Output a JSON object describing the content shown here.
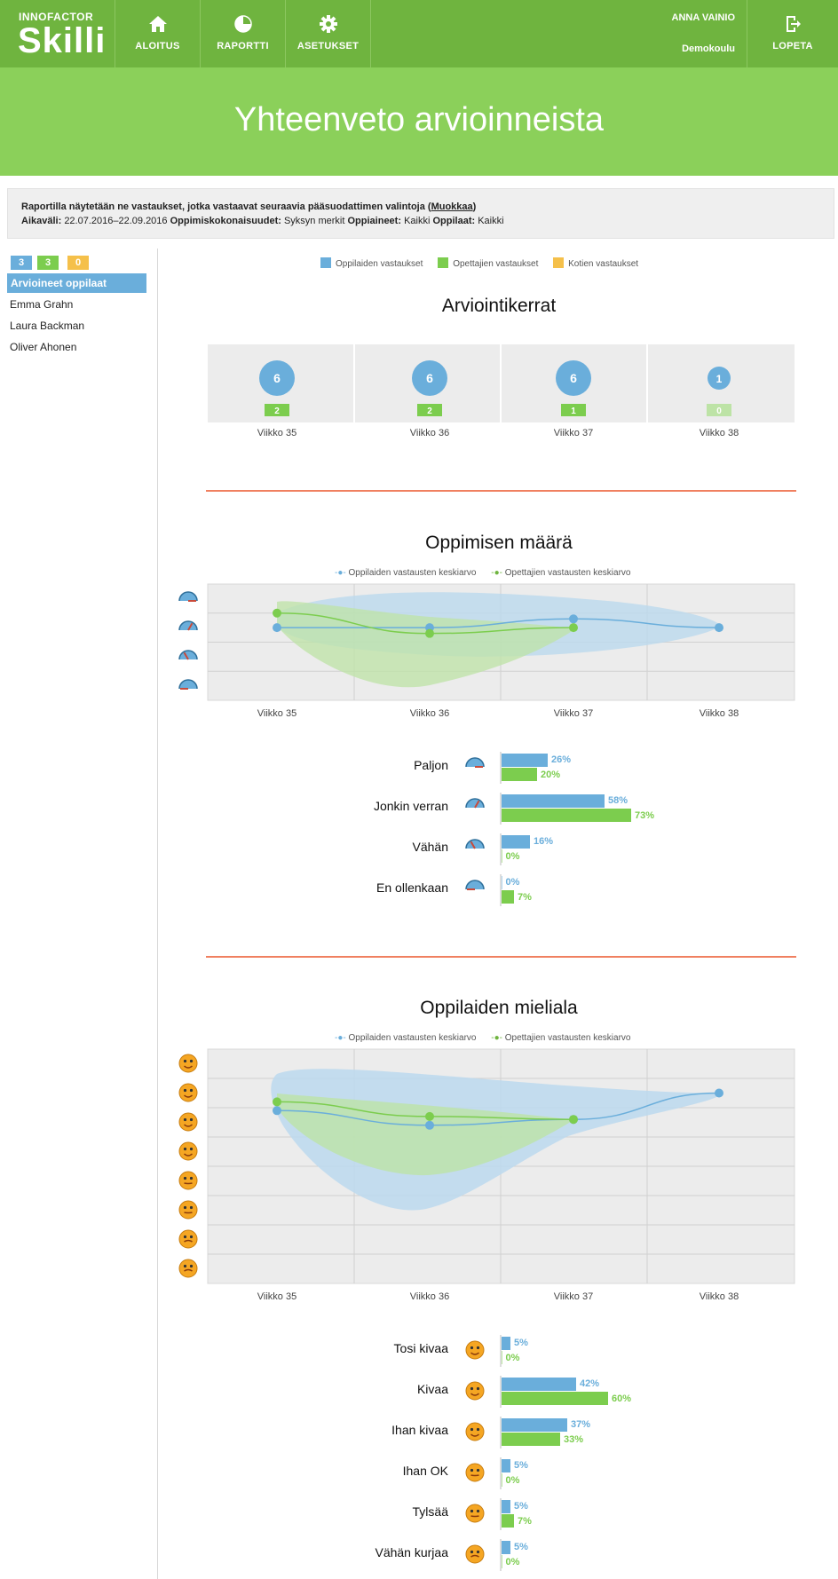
{
  "app": {
    "brand_small": "INNOFACTOR",
    "brand_name": "Skilli",
    "nav": [
      {
        "label": "ALOITUS",
        "icon": "home-icon"
      },
      {
        "label": "RAPORTTI",
        "icon": "report-icon"
      },
      {
        "label": "ASETUKSET",
        "icon": "gear-icon"
      }
    ],
    "user_name": "ANNA VAINIO",
    "school": "Demokoulu",
    "logout": "LOPETA"
  },
  "page_title": "Yhteenveto arvioinneista",
  "filter": {
    "intro": "Raportilla näytetään ne vastaukset, jotka vastaavat seuraavia pääsuodattimen valintoja (",
    "edit_link": "Muokkaa",
    "intro_end": ")",
    "period_label": "Aikaväli:",
    "period_value": "22.07.2016–22.09.2016",
    "unit_label": "Oppimiskokonaisuudet:",
    "unit_value": "Syksyn merkit",
    "subject_label": "Oppiaineet:",
    "subject_value": "Kaikki",
    "students_label": "Oppilaat:",
    "students_value": "Kaikki"
  },
  "sidebar": {
    "counts": [
      "3",
      "3",
      "0"
    ],
    "selected": "Arvioineet oppilaat",
    "students": [
      "Emma Grahn",
      "Laura Backman",
      "Oliver Ahonen"
    ]
  },
  "legend": {
    "students": "Oppilaiden vastaukset",
    "teachers": "Opettajien vastaukset",
    "homes": "Kotien vastaukset"
  },
  "colors": {
    "green_bar": "#6fb43f",
    "title_band": "#8bd05a",
    "blue": "#6aaedb",
    "green": "#7ccd4e",
    "orange": "#f5c04a",
    "divider": "#f08060"
  },
  "sessions": {
    "title": "Arviointikerrat",
    "weeks": [
      "Viikko 35",
      "Viikko 36",
      "Viikko 37",
      "Viikko 38"
    ],
    "student_counts": [
      "6",
      "6",
      "6",
      "1"
    ],
    "teacher_counts": [
      "2",
      "2",
      "1",
      "0"
    ]
  },
  "line_legend": {
    "students": "Oppilaiden vastausten keskiarvo",
    "teachers": "Opettajien vastausten keskiarvo"
  },
  "learning": {
    "title": "Oppimisen määrä",
    "levels": [
      "Paljon",
      "Jonkin verran",
      "Vähän",
      "En ollenkaan"
    ],
    "student_pct": [
      "26%",
      "58%",
      "16%",
      "0%"
    ],
    "teacher_pct": [
      "20%",
      "73%",
      "0%",
      "7%"
    ]
  },
  "mood": {
    "title": "Oppilaiden mieliala",
    "levels": [
      "Tosi kivaa",
      "Kivaa",
      "Ihan kivaa",
      "Ihan OK",
      "Tylsää",
      "Vähän kurjaa"
    ],
    "student_pct": [
      "5%",
      "42%",
      "37%",
      "5%",
      "5%",
      "5%"
    ],
    "teacher_pct": [
      "0%",
      "60%",
      "33%",
      "0%",
      "7%",
      "0%"
    ]
  },
  "chart_data": [
    {
      "type": "bar",
      "title": "Arviointikerrat",
      "categories": [
        "Viikko 35",
        "Viikko 36",
        "Viikko 37",
        "Viikko 38"
      ],
      "series": [
        {
          "name": "Oppilaiden vastaukset",
          "values": [
            6,
            6,
            6,
            1
          ]
        },
        {
          "name": "Opettajien vastaukset",
          "values": [
            2,
            2,
            1,
            0
          ]
        }
      ]
    },
    {
      "type": "line",
      "title": "Oppimisen määrä",
      "categories": [
        "Viikko 35",
        "Viikko 36",
        "Viikko 37",
        "Viikko 38"
      ],
      "y_levels": 4,
      "series": [
        {
          "name": "Oppilaiden vastausten keskiarvo",
          "values": [
            3.0,
            3.0,
            3.3,
            3.0
          ]
        },
        {
          "name": "Opettajien vastausten keskiarvo",
          "values": [
            3.5,
            2.8,
            3.0,
            null
          ]
        }
      ]
    },
    {
      "type": "bar",
      "title": "Oppimisen määrä",
      "categories": [
        "Paljon",
        "Jonkin verran",
        "Vähän",
        "En ollenkaan"
      ],
      "series": [
        {
          "name": "Oppilaiden vastaukset",
          "values": [
            26,
            58,
            16,
            0
          ]
        },
        {
          "name": "Opettajien vastaukset",
          "values": [
            20,
            73,
            0,
            7
          ]
        }
      ]
    },
    {
      "type": "line",
      "title": "Oppilaiden mieliala",
      "categories": [
        "Viikko 35",
        "Viikko 36",
        "Viikko 37",
        "Viikko 38"
      ],
      "y_levels": 8,
      "series": [
        {
          "name": "Oppilaiden vastausten keskiarvo",
          "values": [
            6.4,
            5.9,
            6.1,
            7.0
          ]
        },
        {
          "name": "Opettajien vastausten keskiarvo",
          "values": [
            6.7,
            6.2,
            6.1,
            null
          ]
        }
      ]
    },
    {
      "type": "bar",
      "title": "Oppilaiden mieliala",
      "categories": [
        "Tosi kivaa",
        "Kivaa",
        "Ihan kivaa",
        "Ihan OK",
        "Tylsää",
        "Vähän kurjaa"
      ],
      "series": [
        {
          "name": "Oppilaiden vastaukset",
          "values": [
            5,
            42,
            37,
            5,
            5,
            5
          ]
        },
        {
          "name": "Opettajien vastaukset",
          "values": [
            0,
            60,
            33,
            0,
            7,
            0
          ]
        }
      ]
    }
  ]
}
